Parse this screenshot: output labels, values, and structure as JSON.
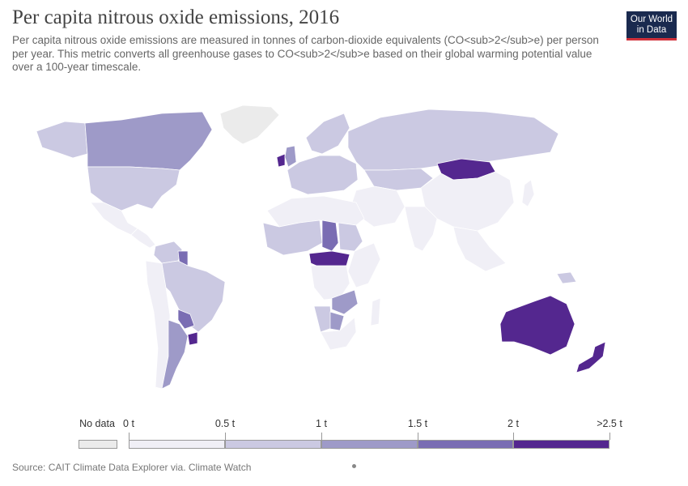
{
  "header": {
    "title": "Per capita nitrous oxide emissions, 2016",
    "subtitle": "Per capita nitrous oxide emissions are measured in tonnes of carbon-dioxide equivalents (CO<sub>2</sub>e) per person per year. This metric converts all greenhouse gases to CO<sub>2</sub>e based on their global warming potential value over a 100-year timescale."
  },
  "logo": {
    "line1": "Our World",
    "line2": "in Data",
    "bg": "#1a2a4f",
    "accent": "#d0303a"
  },
  "legend": {
    "no_data_label": "No data",
    "no_data_color": "#ebebeb",
    "bins": [
      {
        "label": "0 t",
        "color": "#f0eff6"
      },
      {
        "label": "0.5 t",
        "color": "#cbc9e2"
      },
      {
        "label": "1 t",
        "color": "#9e9ac8"
      },
      {
        "label": "1.5 t",
        "color": "#7a6db3"
      },
      {
        "label": "2 t",
        "color": "#54278f"
      }
    ],
    "end_label": ">2.5 t"
  },
  "regions": [
    {
      "name": "greenland",
      "color": "#ebebeb"
    },
    {
      "name": "canada",
      "color": "#9e9ac8"
    },
    {
      "name": "alaska",
      "color": "#cbc9e2"
    },
    {
      "name": "usa",
      "color": "#cbc9e2"
    },
    {
      "name": "mexico",
      "color": "#f0eff6"
    },
    {
      "name": "central-america",
      "color": "#f0eff6"
    },
    {
      "name": "brazil",
      "color": "#cbc9e2"
    },
    {
      "name": "south-america-west",
      "color": "#f0eff6"
    },
    {
      "name": "argentina",
      "color": "#9e9ac8"
    },
    {
      "name": "paraguay",
      "color": "#7a6db3"
    },
    {
      "name": "uruguay",
      "color": "#54278f"
    },
    {
      "name": "venezuela",
      "color": "#cbc9e2"
    },
    {
      "name": "guyana",
      "color": "#7a6db3"
    },
    {
      "name": "europe-west",
      "color": "#cbc9e2"
    },
    {
      "name": "ireland",
      "color": "#54278f"
    },
    {
      "name": "uk",
      "color": "#9e9ac8"
    },
    {
      "name": "scandinavia",
      "color": "#cbc9e2"
    },
    {
      "name": "russia",
      "color": "#cbc9e2"
    },
    {
      "name": "kazakhstan",
      "color": "#cbc9e2"
    },
    {
      "name": "mongolia",
      "color": "#54278f"
    },
    {
      "name": "china",
      "color": "#f0eff6"
    },
    {
      "name": "india",
      "color": "#f0eff6"
    },
    {
      "name": "middle-east",
      "color": "#f0eff6"
    },
    {
      "name": "southeast-asia",
      "color": "#f0eff6"
    },
    {
      "name": "north-africa",
      "color": "#f0eff6"
    },
    {
      "name": "west-africa",
      "color": "#cbc9e2"
    },
    {
      "name": "chad",
      "color": "#7a6db3"
    },
    {
      "name": "central-african-rep",
      "color": "#54278f"
    },
    {
      "name": "sudan",
      "color": "#cbc9e2"
    },
    {
      "name": "east-africa",
      "color": "#f0eff6"
    },
    {
      "name": "central-africa",
      "color": "#f0eff6"
    },
    {
      "name": "zambia",
      "color": "#9e9ac8"
    },
    {
      "name": "botswana",
      "color": "#9e9ac8"
    },
    {
      "name": "namibia",
      "color": "#cbc9e2"
    },
    {
      "name": "southern-africa",
      "color": "#f0eff6"
    },
    {
      "name": "madagascar",
      "color": "#f0eff6"
    },
    {
      "name": "australia",
      "color": "#54278f"
    },
    {
      "name": "new-zealand",
      "color": "#54278f"
    },
    {
      "name": "papua-new-guinea",
      "color": "#cbc9e2"
    },
    {
      "name": "japan",
      "color": "#f0eff6"
    }
  ],
  "footer": {
    "source": "Source: CAIT Climate Data Explorer via. Climate Watch"
  }
}
